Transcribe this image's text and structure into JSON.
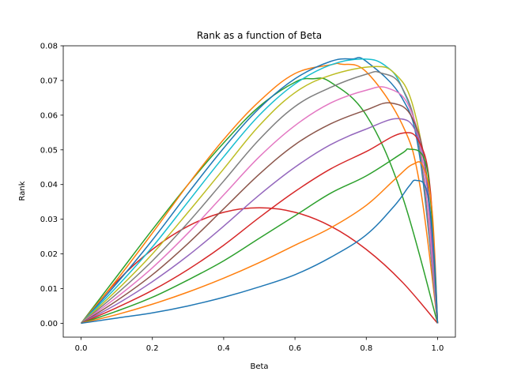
{
  "chart_data": {
    "type": "line",
    "title": "Rank as a function of Beta",
    "xlabel": "Beta",
    "ylabel": "Rank",
    "xlim": [
      -0.05,
      1.05
    ],
    "ylim": [
      -0.004,
      0.08
    ],
    "xticks": [
      0.0,
      0.2,
      0.4,
      0.6,
      0.8,
      1.0
    ],
    "xtick_labels": [
      "0.0",
      "0.2",
      "0.4",
      "0.6",
      "0.8",
      "1.0"
    ],
    "yticks": [
      0.0,
      0.01,
      0.02,
      0.03,
      0.04,
      0.05,
      0.06,
      0.07,
      0.08
    ],
    "ytick_labels": [
      "0.00",
      "0.01",
      "0.02",
      "0.03",
      "0.04",
      "0.05",
      "0.06",
      "0.07",
      "0.08"
    ],
    "grid": false,
    "series": [
      {
        "color": "#d62728",
        "x": [
          0,
          0.1,
          0.2,
          0.3,
          0.4,
          0.5,
          0.6,
          0.7,
          0.8,
          0.9,
          1.0
        ],
        "y": [
          0,
          0.012,
          0.0213,
          0.028,
          0.032,
          0.0333,
          0.032,
          0.028,
          0.0213,
          0.012,
          0
        ]
      },
      {
        "color": "#2ca02c",
        "x": [
          0,
          0.1,
          0.2,
          0.3,
          0.4,
          0.5,
          0.6,
          0.65,
          0.7,
          0.8,
          0.9,
          1.0
        ],
        "y": [
          0,
          0.0135,
          0.027,
          0.04,
          0.052,
          0.0625,
          0.0695,
          0.0705,
          0.0695,
          0.06,
          0.037,
          0
        ]
      },
      {
        "color": "#ff7f0e",
        "x": [
          0,
          0.1,
          0.2,
          0.3,
          0.4,
          0.5,
          0.6,
          0.7,
          0.73,
          0.8,
          0.9,
          0.95,
          1.0
        ],
        "y": [
          0,
          0.0125,
          0.026,
          0.04,
          0.053,
          0.064,
          0.072,
          0.0745,
          0.0747,
          0.0725,
          0.0575,
          0.04,
          0
        ]
      },
      {
        "color": "#1f77b4",
        "x": [
          0,
          0.1,
          0.2,
          0.3,
          0.4,
          0.5,
          0.6,
          0.7,
          0.76,
          0.8,
          0.9,
          0.95,
          1.0
        ],
        "y": [
          0,
          0.0115,
          0.024,
          0.0375,
          0.0505,
          0.062,
          0.0705,
          0.0755,
          0.0762,
          0.0755,
          0.065,
          0.048,
          0
        ]
      },
      {
        "color": "#17becf",
        "x": [
          0,
          0.1,
          0.2,
          0.3,
          0.4,
          0.5,
          0.6,
          0.7,
          0.79,
          0.85,
          0.9,
          0.95,
          1.0
        ],
        "y": [
          0,
          0.0105,
          0.022,
          0.035,
          0.048,
          0.06,
          0.069,
          0.0745,
          0.0762,
          0.0745,
          0.068,
          0.05,
          0
        ]
      },
      {
        "color": "#bcbd22",
        "x": [
          0,
          0.1,
          0.2,
          0.3,
          0.4,
          0.5,
          0.6,
          0.7,
          0.82,
          0.88,
          0.93,
          0.97,
          1.0
        ],
        "y": [
          0,
          0.0095,
          0.02,
          0.032,
          0.0445,
          0.057,
          0.0665,
          0.0715,
          0.074,
          0.072,
          0.063,
          0.04,
          0
        ]
      },
      {
        "color": "#7f7f7f",
        "x": [
          0,
          0.1,
          0.2,
          0.3,
          0.4,
          0.5,
          0.6,
          0.7,
          0.8,
          0.84,
          0.9,
          0.95,
          1.0
        ],
        "y": [
          0,
          0.0085,
          0.018,
          0.029,
          0.041,
          0.053,
          0.0625,
          0.068,
          0.0718,
          0.0722,
          0.068,
          0.05,
          0
        ]
      },
      {
        "color": "#e377c2",
        "x": [
          0,
          0.1,
          0.2,
          0.3,
          0.4,
          0.5,
          0.6,
          0.7,
          0.8,
          0.86,
          0.92,
          0.96,
          1.0
        ],
        "y": [
          0,
          0.0075,
          0.016,
          0.026,
          0.037,
          0.048,
          0.057,
          0.0635,
          0.0672,
          0.0678,
          0.0625,
          0.045,
          0
        ]
      },
      {
        "color": "#8c564b",
        "x": [
          0,
          0.1,
          0.2,
          0.3,
          0.4,
          0.5,
          0.6,
          0.7,
          0.8,
          0.87,
          0.93,
          0.97,
          1.0
        ],
        "y": [
          0,
          0.0065,
          0.014,
          0.023,
          0.033,
          0.043,
          0.0515,
          0.0575,
          0.0615,
          0.0635,
          0.059,
          0.042,
          0
        ]
      },
      {
        "color": "#9467bd",
        "x": [
          0,
          0.1,
          0.2,
          0.3,
          0.4,
          0.5,
          0.6,
          0.7,
          0.8,
          0.89,
          0.94,
          0.97,
          1.0
        ],
        "y": [
          0,
          0.0055,
          0.012,
          0.0195,
          0.028,
          0.037,
          0.045,
          0.0515,
          0.056,
          0.059,
          0.055,
          0.04,
          0
        ]
      },
      {
        "color": "#d62728",
        "x": [
          0,
          0.1,
          0.2,
          0.3,
          0.4,
          0.5,
          0.6,
          0.7,
          0.8,
          0.9,
          0.95,
          0.98,
          1.0
        ],
        "y": [
          0,
          0.0045,
          0.0095,
          0.0155,
          0.0225,
          0.0305,
          0.038,
          0.0445,
          0.0495,
          0.0548,
          0.052,
          0.038,
          0
        ]
      },
      {
        "color": "#2ca02c",
        "x": [
          0,
          0.1,
          0.2,
          0.3,
          0.4,
          0.5,
          0.6,
          0.7,
          0.8,
          0.9,
          0.92,
          0.96,
          0.98,
          1.0
        ],
        "y": [
          0,
          0.0035,
          0.0075,
          0.0125,
          0.018,
          0.0245,
          0.031,
          0.0375,
          0.0425,
          0.049,
          0.0502,
          0.048,
          0.036,
          0
        ]
      },
      {
        "color": "#ff7f0e",
        "x": [
          0,
          0.1,
          0.2,
          0.3,
          0.4,
          0.5,
          0.6,
          0.7,
          0.8,
          0.88,
          0.93,
          0.96,
          0.985,
          1.0
        ],
        "y": [
          0,
          0.0025,
          0.0055,
          0.009,
          0.013,
          0.0175,
          0.0225,
          0.0275,
          0.034,
          0.0415,
          0.0458,
          0.045,
          0.032,
          0
        ]
      },
      {
        "color": "#1f77b4",
        "x": [
          0,
          0.1,
          0.2,
          0.3,
          0.4,
          0.5,
          0.6,
          0.7,
          0.8,
          0.88,
          0.92,
          0.94,
          0.97,
          0.99,
          1.0
        ],
        "y": [
          0,
          0.0015,
          0.003,
          0.005,
          0.0075,
          0.0105,
          0.014,
          0.019,
          0.0255,
          0.034,
          0.0395,
          0.0412,
          0.038,
          0.02,
          0
        ]
      }
    ]
  }
}
